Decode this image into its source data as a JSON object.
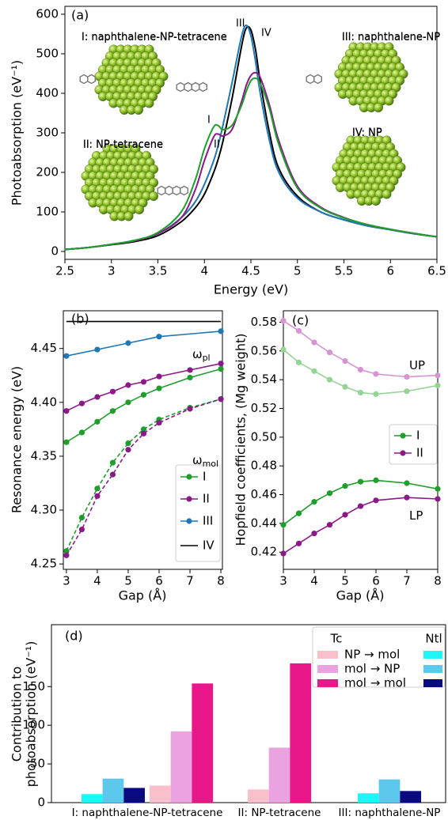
{
  "chart_data": [
    {
      "type": "line",
      "panel_label": "(a)",
      "xlabel": "Energy (eV)",
      "ylabel": "Photoabsorption (eV⁻¹)",
      "x": [
        2.5,
        2.75,
        3,
        3.25,
        3.5,
        3.75,
        3.9,
        4.0,
        4.1,
        4.15,
        4.2,
        4.3,
        4.4,
        4.45,
        4.5,
        4.55,
        4.6,
        4.7,
        4.8,
        5,
        5.25,
        5.5,
        5.75,
        6,
        6.25,
        6.5
      ],
      "xlim": [
        2.5,
        6.5
      ],
      "ylim": [
        -20,
        620
      ],
      "xticks": [
        2.5,
        3,
        3.5,
        4,
        4.5,
        5,
        5.5,
        6,
        6.5
      ],
      "yticks": [
        0,
        100,
        200,
        300,
        400,
        500,
        600
      ],
      "series": [
        {
          "name": "I",
          "color": "#1f9e2c",
          "values": [
            5,
            10,
            18,
            28,
            48,
            100,
            180,
            260,
            315,
            318,
            308,
            320,
            370,
            405,
            432,
            438,
            425,
            360,
            270,
            160,
            110,
            85,
            68,
            56,
            46,
            37
          ]
        },
        {
          "name": "II",
          "color": "#8b1a89",
          "values": [
            5,
            10,
            18,
            27,
            45,
            85,
            155,
            230,
            290,
            297,
            292,
            310,
            380,
            420,
            445,
            452,
            440,
            370,
            280,
            165,
            112,
            86,
            68,
            56,
            46,
            37
          ]
        },
        {
          "name": "III",
          "color": "#1f77b4",
          "values": [
            5,
            10,
            18,
            28,
            45,
            85,
            125,
            170,
            230,
            270,
            320,
            430,
            545,
            572,
            545,
            480,
            400,
            280,
            200,
            135,
            100,
            80,
            65,
            55,
            45,
            37
          ]
        },
        {
          "name": "IV",
          "color": "#000000",
          "values": [
            5,
            10,
            17,
            25,
            40,
            75,
            110,
            145,
            200,
            235,
            280,
            390,
            520,
            565,
            560,
            510,
            430,
            300,
            210,
            140,
            100,
            80,
            65,
            55,
            45,
            37
          ]
        }
      ],
      "annotations": [
        {
          "text": "I: naphthalene-NP-tetracene",
          "color": "#1f9e2c"
        },
        {
          "text": "II: NP-tetracene",
          "color": "#8b1a89"
        },
        {
          "text": "III: naphthalene-NP",
          "color": "#1f77b4"
        },
        {
          "text": "IV: NP",
          "color": "#000000"
        }
      ]
    },
    {
      "type": "line",
      "panel_label": "(b)",
      "xlabel": "Gap (Å)",
      "ylabel": "Resonance energy (eV)",
      "xlim": [
        2.9,
        8.05
      ],
      "ylim": [
        4.245,
        4.485
      ],
      "xticks": [
        3,
        4,
        5,
        6,
        7,
        8
      ],
      "yticks": [
        4.25,
        {
          "value": 4.3,
          "label": "4.30"
        },
        4.35,
        {
          "value": 4.4,
          "label": "4.40"
        },
        4.45
      ],
      "series": [
        {
          "name": "I",
          "color": "#1f9e2c",
          "marker": true,
          "x": [
            3,
            3.5,
            4,
            4.5,
            5,
            5.5,
            6,
            7,
            8
          ],
          "values": [
            4.363,
            4.372,
            4.382,
            4.392,
            4.4,
            4.407,
            4.413,
            4.423,
            4.431
          ]
        },
        {
          "name": "II",
          "color": "#8b1a89",
          "marker": true,
          "x": [
            3,
            3.5,
            4,
            4.5,
            5,
            5.5,
            6,
            7,
            8
          ],
          "values": [
            4.392,
            4.399,
            4.405,
            4.41,
            4.416,
            4.419,
            4.424,
            4.43,
            4.436
          ]
        },
        {
          "name": "III",
          "color": "#1f77b4",
          "marker": true,
          "x": [
            3,
            4,
            5,
            6,
            8
          ],
          "values": [
            4.443,
            4.449,
            4.455,
            4.461,
            4.466
          ]
        },
        {
          "name": "IV",
          "color": "#000000",
          "marker": false,
          "x": [
            3,
            8
          ],
          "values": [
            4.475,
            4.475
          ]
        },
        {
          "color": "#1f9e2c",
          "marker": true,
          "dashed": true,
          "x": [
            3,
            3.5,
            4,
            4.5,
            5,
            5.5,
            6,
            7,
            8
          ],
          "values": [
            4.262,
            4.293,
            4.32,
            4.344,
            4.362,
            4.375,
            4.384,
            4.395,
            4.403
          ]
        },
        {
          "color": "#8b1a89",
          "marker": true,
          "dashed": true,
          "x": [
            3,
            3.5,
            4,
            4.5,
            5,
            5.5,
            6,
            7,
            8
          ],
          "values": [
            4.258,
            4.282,
            4.313,
            4.333,
            4.356,
            4.371,
            4.381,
            4.394,
            4.403
          ]
        }
      ],
      "annotations": [
        {
          "text": "ω",
          "sub": "pl"
        },
        {
          "text": "ω",
          "sub": "mol"
        }
      ]
    },
    {
      "type": "line",
      "panel_label": "(c)",
      "xlabel": "Gap (Å)",
      "ylabel": "Hopfield coefficients, (Mg weight)",
      "xlim": [
        3,
        8
      ],
      "ylim": [
        0.408,
        0.588
      ],
      "xticks": [
        3,
        4,
        5,
        6,
        7,
        8
      ],
      "yticks": [
        0.42,
        0.44,
        0.46,
        0.48,
        {
          "value": 0.5,
          "label": "0.50"
        },
        0.52,
        0.54,
        0.56,
        0.58
      ],
      "series": [
        {
          "name": "I",
          "color": "#1f9e2c",
          "marker": true,
          "x": [
            3,
            3.5,
            4,
            4.5,
            5,
            5.5,
            6,
            7,
            8
          ],
          "values": [
            0.439,
            0.447,
            0.455,
            0.461,
            0.466,
            0.469,
            0.47,
            0.468,
            0.464
          ]
        },
        {
          "name": "II",
          "color": "#8b1a89",
          "marker": true,
          "x": [
            3,
            3.5,
            4,
            4.5,
            5,
            5.5,
            6,
            7,
            8
          ],
          "values": [
            0.419,
            0.426,
            0.433,
            0.439,
            0.446,
            0.452,
            0.456,
            0.458,
            0.457
          ]
        },
        {
          "color": "#95d495",
          "marker": true,
          "x": [
            3,
            3.5,
            4,
            4.5,
            5,
            5.5,
            6,
            7,
            8
          ],
          "values": [
            0.561,
            0.552,
            0.546,
            0.54,
            0.535,
            0.531,
            0.53,
            0.532,
            0.536
          ]
        },
        {
          "color": "#d694d3",
          "marker": true,
          "x": [
            3,
            3.5,
            4,
            4.5,
            5,
            5.5,
            6,
            7,
            8
          ],
          "values": [
            0.581,
            0.574,
            0.566,
            0.559,
            0.553,
            0.547,
            0.544,
            0.542,
            0.543
          ]
        }
      ],
      "annotations": [
        {
          "text": "UP"
        },
        {
          "text": "LP"
        }
      ]
    },
    {
      "type": "bar",
      "panel_label": "(d)",
      "ylabel": [
        "Contribution to",
        "photoabsorption (eV⁻¹)"
      ],
      "categories": [
        "I: naphthalene-NP-tetracene",
        "II: NP-tetracene",
        "III: naphthalene-NP"
      ],
      "ylim": [
        0,
        230
      ],
      "yticks": [
        0,
        50,
        100,
        150
      ],
      "series_groups": [
        {
          "name": "Tc",
          "series": [
            {
              "name": "NP → mol",
              "color": "#f9c0cb",
              "values": [
                22,
                17,
                null
              ]
            },
            {
              "name": "mol → NP",
              "color": "#eba2e0",
              "values": [
                92,
                71,
                null
              ]
            },
            {
              "name": "mol → mol",
              "color": "#e8178a",
              "values": [
                154,
                180,
                null
              ]
            }
          ]
        },
        {
          "name": "Ntl",
          "series": [
            {
              "color": "#1ef5f5",
              "values": [
                11,
                null,
                12
              ]
            },
            {
              "color": "#5bc8ec",
              "values": [
                31,
                null,
                30
              ]
            },
            {
              "color": "#0a0a80",
              "values": [
                19,
                null,
                15
              ]
            }
          ]
        }
      ]
    }
  ]
}
